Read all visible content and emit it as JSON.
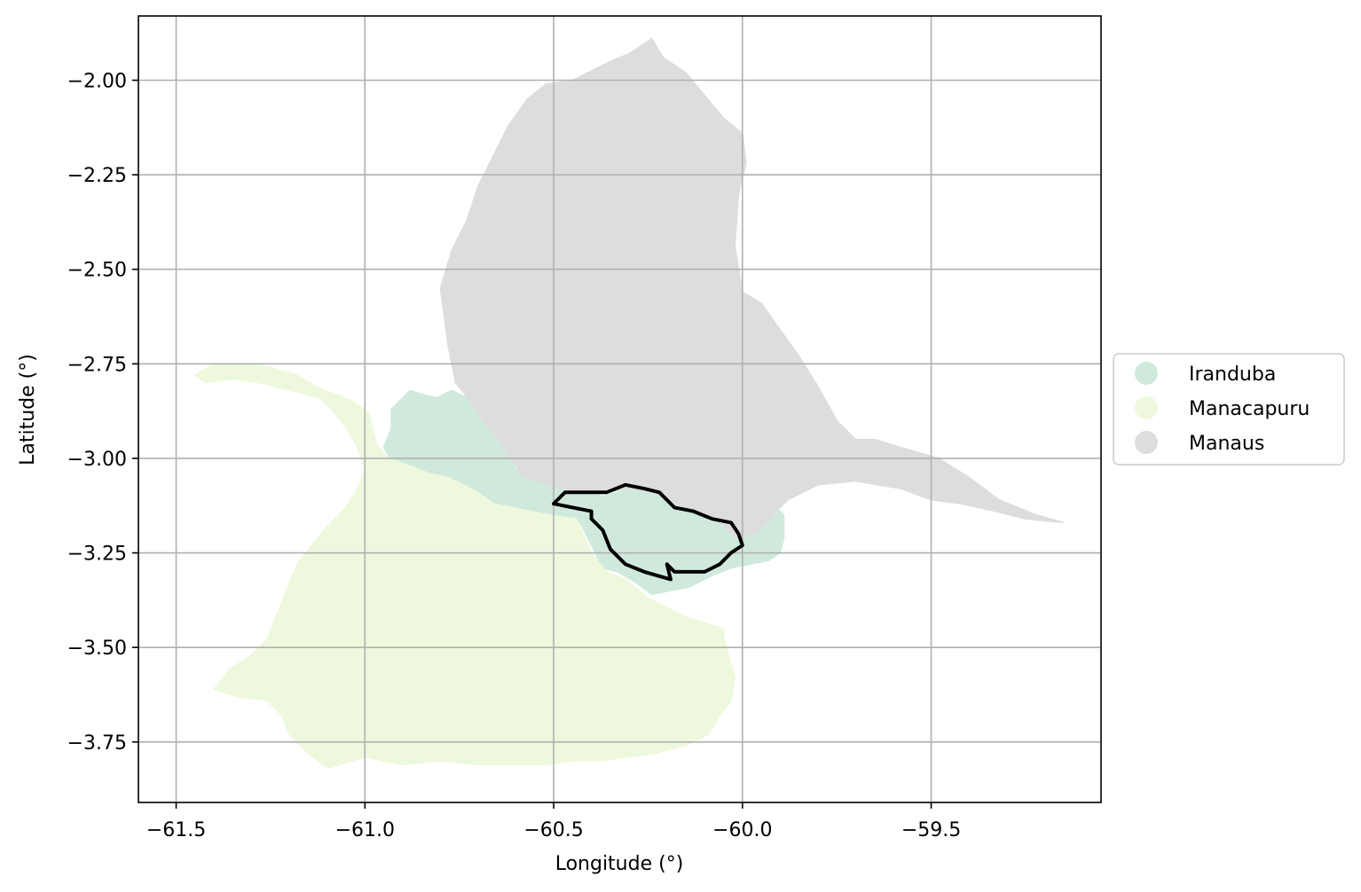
{
  "chart_data": {
    "type": "map",
    "xlabel": "Longitude (°)",
    "ylabel": "Latitude (°)",
    "xlim": [
      -61.6,
      -59.05
    ],
    "ylim": [
      -3.91,
      -1.83
    ],
    "xticks": [
      -61.5,
      -61.0,
      -60.5,
      -60.0,
      -59.5
    ],
    "xtick_labels": [
      "−61.5",
      "−61.0",
      "−60.5",
      "−60.0",
      "−59.5"
    ],
    "yticks": [
      -2.0,
      -2.25,
      -2.5,
      -2.75,
      -3.0,
      -3.25,
      -3.5,
      -3.75
    ],
    "ytick_labels": [
      "−2.00",
      "−2.25",
      "−2.50",
      "−2.75",
      "−3.00",
      "−3.25",
      "−3.50",
      "−3.75"
    ],
    "grid": true,
    "legend_position": "right",
    "regions": [
      {
        "name": "Iranduba",
        "color": "#cfeadd",
        "polygon": [
          [
            -60.93,
            -2.87
          ],
          [
            -60.88,
            -2.82
          ],
          [
            -60.85,
            -2.83
          ],
          [
            -60.81,
            -2.84
          ],
          [
            -60.77,
            -2.82
          ],
          [
            -60.73,
            -2.84
          ],
          [
            -60.69,
            -2.9
          ],
          [
            -60.66,
            -2.94
          ],
          [
            -60.62,
            -2.99
          ],
          [
            -60.6,
            -3.03
          ],
          [
            -60.55,
            -3.05
          ],
          [
            -60.5,
            -3.07
          ],
          [
            -60.46,
            -3.08
          ],
          [
            -60.41,
            -3.09
          ],
          [
            -60.37,
            -3.1
          ],
          [
            -60.3,
            -3.08
          ],
          [
            -60.26,
            -3.08
          ],
          [
            -60.2,
            -3.1
          ],
          [
            -60.14,
            -3.13
          ],
          [
            -60.06,
            -3.15
          ],
          [
            -60.0,
            -3.17
          ],
          [
            -59.95,
            -3.15
          ],
          [
            -59.91,
            -3.13
          ],
          [
            -59.89,
            -3.15
          ],
          [
            -59.89,
            -3.21
          ],
          [
            -59.9,
            -3.25
          ],
          [
            -59.93,
            -3.27
          ],
          [
            -59.98,
            -3.28
          ],
          [
            -60.03,
            -3.29
          ],
          [
            -60.08,
            -3.31
          ],
          [
            -60.14,
            -3.34
          ],
          [
            -60.19,
            -3.35
          ],
          [
            -60.24,
            -3.36
          ],
          [
            -60.28,
            -3.33
          ],
          [
            -60.33,
            -3.3
          ],
          [
            -60.37,
            -3.29
          ],
          [
            -60.43,
            -3.17
          ],
          [
            -60.51,
            -3.15
          ],
          [
            -60.56,
            -3.14
          ],
          [
            -60.61,
            -3.13
          ],
          [
            -60.66,
            -3.12
          ],
          [
            -60.7,
            -3.09
          ],
          [
            -60.75,
            -3.06
          ],
          [
            -60.78,
            -3.05
          ],
          [
            -60.83,
            -3.04
          ],
          [
            -60.88,
            -3.02
          ],
          [
            -60.93,
            -3.01
          ],
          [
            -60.95,
            -2.97
          ],
          [
            -60.93,
            -2.92
          ]
        ]
      },
      {
        "name": "Manacapuru",
        "color": "#eef8dc",
        "polygon": [
          [
            -61.45,
            -2.78
          ],
          [
            -61.4,
            -2.75
          ],
          [
            -61.35,
            -2.75
          ],
          [
            -61.3,
            -2.75
          ],
          [
            -61.25,
            -2.76
          ],
          [
            -61.18,
            -2.78
          ],
          [
            -61.13,
            -2.81
          ],
          [
            -61.08,
            -2.83
          ],
          [
            -61.03,
            -2.85
          ],
          [
            -60.99,
            -2.88
          ],
          [
            -60.97,
            -2.96
          ],
          [
            -60.94,
            -3.0
          ],
          [
            -60.88,
            -3.02
          ],
          [
            -60.83,
            -3.04
          ],
          [
            -60.78,
            -3.05
          ],
          [
            -60.74,
            -3.07
          ],
          [
            -60.7,
            -3.09
          ],
          [
            -60.66,
            -3.12
          ],
          [
            -60.61,
            -3.13
          ],
          [
            -60.56,
            -3.14
          ],
          [
            -60.51,
            -3.15
          ],
          [
            -60.44,
            -3.16
          ],
          [
            -60.4,
            -3.25
          ],
          [
            -60.36,
            -3.3
          ],
          [
            -60.31,
            -3.32
          ],
          [
            -60.25,
            -3.37
          ],
          [
            -60.15,
            -3.42
          ],
          [
            -60.05,
            -3.45
          ],
          [
            -60.05,
            -3.47
          ],
          [
            -60.02,
            -3.58
          ],
          [
            -60.03,
            -3.64
          ],
          [
            -60.06,
            -3.68
          ],
          [
            -60.09,
            -3.73
          ],
          [
            -60.15,
            -3.76
          ],
          [
            -60.23,
            -3.78
          ],
          [
            -60.3,
            -3.79
          ],
          [
            -60.38,
            -3.8
          ],
          [
            -60.45,
            -3.8
          ],
          [
            -60.52,
            -3.81
          ],
          [
            -60.6,
            -3.81
          ],
          [
            -60.7,
            -3.81
          ],
          [
            -60.8,
            -3.8
          ],
          [
            -60.9,
            -3.81
          ],
          [
            -61.0,
            -3.79
          ],
          [
            -61.1,
            -3.82
          ],
          [
            -61.15,
            -3.78
          ],
          [
            -61.2,
            -3.73
          ],
          [
            -61.22,
            -3.68
          ],
          [
            -61.26,
            -3.64
          ],
          [
            -61.34,
            -3.63
          ],
          [
            -61.4,
            -3.61
          ],
          [
            -61.36,
            -3.56
          ],
          [
            -61.3,
            -3.52
          ],
          [
            -61.26,
            -3.48
          ],
          [
            -61.24,
            -3.43
          ],
          [
            -61.22,
            -3.38
          ],
          [
            -61.2,
            -3.33
          ],
          [
            -61.18,
            -3.28
          ],
          [
            -61.14,
            -3.23
          ],
          [
            -61.1,
            -3.18
          ],
          [
            -61.05,
            -3.13
          ],
          [
            -61.02,
            -3.08
          ],
          [
            -61.0,
            -3.03
          ],
          [
            -61.02,
            -2.97
          ],
          [
            -61.05,
            -2.92
          ],
          [
            -61.08,
            -2.88
          ],
          [
            -61.12,
            -2.84
          ],
          [
            -61.2,
            -2.82
          ],
          [
            -61.28,
            -2.8
          ],
          [
            -61.35,
            -2.79
          ],
          [
            -61.42,
            -2.8
          ]
        ]
      },
      {
        "name": "Manaus",
        "color": "#dddddd",
        "polygon": [
          [
            -60.45,
            -2.0
          ],
          [
            -60.35,
            -1.95
          ],
          [
            -60.3,
            -1.93
          ],
          [
            -60.24,
            -1.89
          ],
          [
            -60.21,
            -1.94
          ],
          [
            -60.15,
            -1.98
          ],
          [
            -60.1,
            -2.04
          ],
          [
            -60.05,
            -2.1
          ],
          [
            -60.0,
            -2.14
          ],
          [
            -59.99,
            -2.22
          ],
          [
            -60.01,
            -2.3
          ],
          [
            -60.02,
            -2.44
          ],
          [
            -60.0,
            -2.56
          ],
          [
            -59.95,
            -2.59
          ],
          [
            -59.9,
            -2.66
          ],
          [
            -59.85,
            -2.73
          ],
          [
            -59.8,
            -2.81
          ],
          [
            -59.75,
            -2.9
          ],
          [
            -59.7,
            -2.95
          ],
          [
            -59.65,
            -2.95
          ],
          [
            -59.55,
            -2.98
          ],
          [
            -59.48,
            -3.0
          ],
          [
            -59.4,
            -3.05
          ],
          [
            -59.32,
            -3.11
          ],
          [
            -59.22,
            -3.15
          ],
          [
            -59.15,
            -3.17
          ],
          [
            -59.25,
            -3.16
          ],
          [
            -59.33,
            -3.14
          ],
          [
            -59.42,
            -3.12
          ],
          [
            -59.5,
            -3.11
          ],
          [
            -59.58,
            -3.08
          ],
          [
            -59.7,
            -3.06
          ],
          [
            -59.8,
            -3.07
          ],
          [
            -59.88,
            -3.11
          ],
          [
            -59.93,
            -3.16
          ],
          [
            -59.97,
            -3.2
          ],
          [
            -60.02,
            -3.21
          ],
          [
            -60.07,
            -3.16
          ],
          [
            -60.12,
            -3.14
          ],
          [
            -60.18,
            -3.12
          ],
          [
            -60.24,
            -3.09
          ],
          [
            -60.3,
            -3.08
          ],
          [
            -60.37,
            -3.09
          ],
          [
            -60.43,
            -3.09
          ],
          [
            -60.48,
            -3.08
          ],
          [
            -60.54,
            -3.06
          ],
          [
            -60.58,
            -3.05
          ],
          [
            -60.6,
            -3.02
          ],
          [
            -60.64,
            -2.96
          ],
          [
            -60.68,
            -2.91
          ],
          [
            -60.72,
            -2.85
          ],
          [
            -60.76,
            -2.8
          ],
          [
            -60.78,
            -2.7
          ],
          [
            -60.8,
            -2.55
          ],
          [
            -60.77,
            -2.45
          ],
          [
            -60.73,
            -2.37
          ],
          [
            -60.7,
            -2.28
          ],
          [
            -60.66,
            -2.2
          ],
          [
            -60.62,
            -2.12
          ],
          [
            -60.57,
            -2.05
          ],
          [
            -60.52,
            -2.01
          ]
        ]
      }
    ],
    "highlight_outline": {
      "color": "#000000",
      "polygon": [
        [
          -60.5,
          -3.12
        ],
        [
          -60.47,
          -3.09
        ],
        [
          -60.41,
          -3.09
        ],
        [
          -60.36,
          -3.09
        ],
        [
          -60.31,
          -3.07
        ],
        [
          -60.26,
          -3.08
        ],
        [
          -60.22,
          -3.09
        ],
        [
          -60.18,
          -3.13
        ],
        [
          -60.13,
          -3.14
        ],
        [
          -60.08,
          -3.16
        ],
        [
          -60.03,
          -3.17
        ],
        [
          -60.01,
          -3.2
        ],
        [
          -60.0,
          -3.23
        ],
        [
          -60.03,
          -3.25
        ],
        [
          -60.06,
          -3.28
        ],
        [
          -60.1,
          -3.3
        ],
        [
          -60.15,
          -3.3
        ],
        [
          -60.18,
          -3.3
        ],
        [
          -60.2,
          -3.28
        ],
        [
          -60.19,
          -3.32
        ],
        [
          -60.26,
          -3.3
        ],
        [
          -60.31,
          -3.28
        ],
        [
          -60.35,
          -3.24
        ],
        [
          -60.37,
          -3.19
        ],
        [
          -60.4,
          -3.16
        ],
        [
          -60.4,
          -3.14
        ]
      ]
    },
    "legend": [
      {
        "label": "Iranduba",
        "color": "#cfeadd"
      },
      {
        "label": "Manacapuru",
        "color": "#eef8dc"
      },
      {
        "label": "Manaus",
        "color": "#dddddd"
      }
    ]
  }
}
